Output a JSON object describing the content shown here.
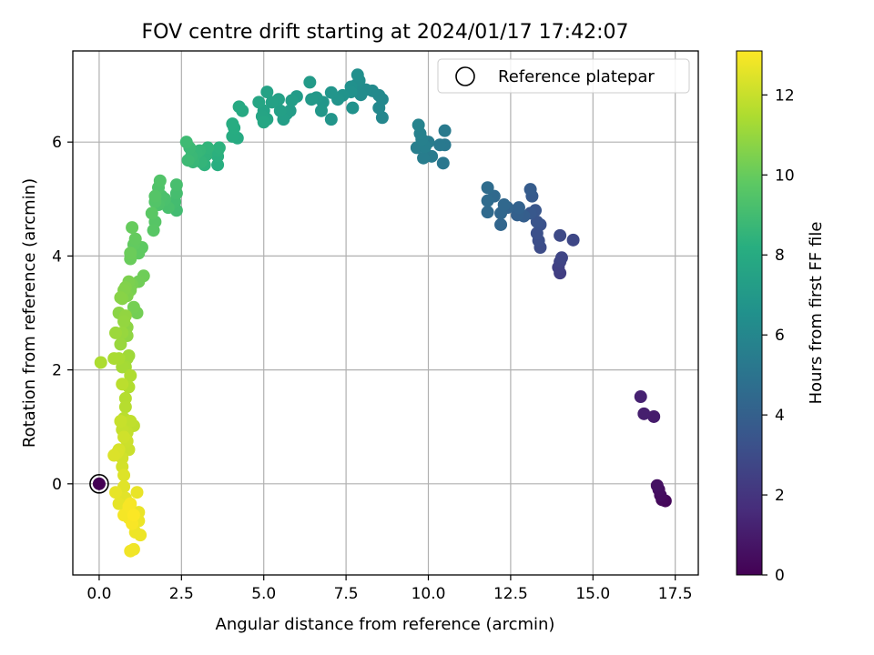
{
  "chart_data": {
    "type": "scatter",
    "title": "FOV centre drift starting at 2024/01/17 17:42:07",
    "xlabel": "Angular distance from reference (arcmin)",
    "ylabel": "Rotation from reference (arcmin)",
    "xlim": [
      -0.8,
      18.2
    ],
    "ylim": [
      -1.6,
      7.6
    ],
    "xticks": [
      0.0,
      2.5,
      5.0,
      7.5,
      10.0,
      12.5,
      15.0,
      17.5
    ],
    "xtick_labels": [
      "0.0",
      "2.5",
      "5.0",
      "7.5",
      "10.0",
      "12.5",
      "15.0",
      "17.5"
    ],
    "yticks": [
      0,
      2,
      4,
      6
    ],
    "ytick_labels": [
      "0",
      "2",
      "4",
      "6"
    ],
    "grid": true,
    "legend": {
      "position": "top-right",
      "entries": [
        "Reference platepar"
      ]
    },
    "colorbar": {
      "label": "Hours from first FF file",
      "colormap": "viridis",
      "range": [
        0,
        13.1
      ],
      "ticks": [
        0,
        2,
        4,
        6,
        8,
        10,
        12
      ],
      "tick_labels": [
        "0",
        "2",
        "4",
        "6",
        "8",
        "10",
        "12"
      ]
    },
    "reference_point": {
      "x": 0.0,
      "y": 0.0,
      "color_value": 0.0
    },
    "series": [
      {
        "points": [
          [
            17.2,
            -0.3,
            0.2
          ],
          [
            17.1,
            -0.28,
            0.3
          ],
          [
            17.05,
            -0.2,
            0.4
          ],
          [
            17.0,
            -0.1,
            0.5
          ],
          [
            16.95,
            -0.03,
            0.6
          ],
          [
            16.85,
            1.18,
            1.0
          ],
          [
            16.55,
            1.23,
            1.1
          ],
          [
            16.45,
            1.53,
            1.2
          ],
          [
            14.0,
            3.7,
            2.4
          ],
          [
            13.95,
            3.8,
            2.5
          ],
          [
            14.0,
            3.9,
            2.6
          ],
          [
            14.05,
            3.97,
            2.7
          ],
          [
            14.4,
            4.28,
            2.8
          ],
          [
            14.0,
            4.36,
            2.9
          ],
          [
            13.4,
            4.15,
            3.0
          ],
          [
            13.35,
            4.27,
            3.1
          ],
          [
            13.3,
            4.4,
            3.2
          ],
          [
            13.4,
            4.55,
            3.3
          ],
          [
            13.3,
            4.6,
            3.4
          ],
          [
            13.25,
            4.8,
            3.5
          ],
          [
            13.1,
            4.75,
            3.6
          ],
          [
            13.15,
            5.05,
            3.7
          ],
          [
            13.1,
            5.17,
            3.8
          ],
          [
            12.9,
            4.7,
            3.9
          ],
          [
            12.7,
            4.72,
            4.0
          ],
          [
            12.75,
            4.85,
            4.1
          ],
          [
            12.4,
            4.85,
            4.2
          ],
          [
            12.2,
            4.55,
            4.3
          ],
          [
            12.2,
            4.75,
            4.35
          ],
          [
            12.3,
            4.9,
            4.4
          ],
          [
            12.0,
            5.05,
            4.45
          ],
          [
            11.8,
            4.77,
            4.5
          ],
          [
            11.8,
            4.97,
            4.55
          ],
          [
            11.8,
            5.2,
            4.6
          ],
          [
            10.45,
            5.63,
            5.2
          ],
          [
            10.5,
            5.95,
            5.25
          ],
          [
            10.35,
            5.95,
            5.3
          ],
          [
            10.5,
            6.2,
            5.35
          ],
          [
            10.1,
            5.75,
            5.4
          ],
          [
            10.0,
            6.0,
            5.45
          ],
          [
            9.85,
            5.72,
            5.5
          ],
          [
            9.65,
            5.9,
            5.55
          ],
          [
            9.9,
            5.92,
            5.6
          ],
          [
            9.8,
            6.05,
            5.65
          ],
          [
            9.75,
            6.15,
            5.7
          ],
          [
            9.7,
            6.3,
            5.8
          ],
          [
            8.6,
            6.43,
            6.0
          ],
          [
            8.5,
            6.6,
            6.05
          ],
          [
            8.6,
            6.75,
            6.1
          ],
          [
            8.5,
            6.82,
            6.15
          ],
          [
            8.3,
            6.9,
            6.2
          ],
          [
            8.1,
            6.92,
            6.25
          ],
          [
            7.95,
            6.83,
            6.3
          ],
          [
            7.8,
            7.0,
            6.35
          ],
          [
            7.9,
            7.08,
            6.4
          ],
          [
            7.85,
            7.18,
            6.45
          ],
          [
            7.65,
            6.97,
            6.5
          ],
          [
            7.65,
            6.88,
            6.55
          ],
          [
            7.7,
            6.6,
            6.6
          ],
          [
            7.4,
            6.82,
            6.65
          ],
          [
            7.25,
            6.75,
            6.7
          ],
          [
            7.05,
            6.87,
            6.75
          ],
          [
            7.05,
            6.4,
            6.8
          ],
          [
            6.8,
            6.7,
            6.85
          ],
          [
            6.75,
            6.55,
            6.9
          ],
          [
            6.6,
            6.78,
            6.95
          ],
          [
            6.45,
            6.75,
            7.0
          ],
          [
            6.4,
            7.05,
            7.05
          ],
          [
            6.0,
            6.8,
            7.1
          ],
          [
            5.8,
            6.55,
            7.15
          ],
          [
            5.85,
            6.73,
            7.2
          ],
          [
            5.7,
            6.5,
            7.25
          ],
          [
            5.6,
            6.4,
            7.3
          ],
          [
            5.5,
            6.55,
            7.35
          ],
          [
            5.45,
            6.75,
            7.4
          ],
          [
            5.25,
            6.7,
            7.45
          ],
          [
            5.1,
            6.88,
            7.5
          ],
          [
            5.0,
            6.55,
            7.55
          ],
          [
            5.1,
            6.4,
            7.6
          ],
          [
            4.95,
            6.45,
            7.65
          ],
          [
            4.85,
            6.7,
            7.7
          ],
          [
            5.0,
            6.35,
            7.75
          ],
          [
            4.35,
            6.55,
            7.85
          ],
          [
            4.25,
            6.62,
            7.9
          ],
          [
            4.2,
            6.07,
            7.95
          ],
          [
            4.05,
            6.1,
            8.0
          ],
          [
            4.1,
            6.25,
            8.05
          ],
          [
            4.05,
            6.32,
            8.1
          ],
          [
            3.6,
            5.6,
            8.2
          ],
          [
            3.6,
            5.75,
            8.25
          ],
          [
            3.6,
            5.85,
            8.3
          ],
          [
            3.65,
            5.9,
            8.35
          ],
          [
            3.2,
            5.6,
            8.4
          ],
          [
            3.25,
            5.77,
            8.45
          ],
          [
            3.3,
            5.9,
            8.5
          ],
          [
            3.1,
            5.65,
            8.55
          ],
          [
            3.05,
            5.85,
            8.6
          ],
          [
            2.95,
            5.8,
            8.65
          ],
          [
            2.85,
            5.65,
            8.7
          ],
          [
            2.8,
            5.75,
            8.75
          ],
          [
            2.75,
            5.9,
            8.8
          ],
          [
            2.7,
            5.68,
            8.85
          ],
          [
            2.65,
            6.0,
            8.9
          ],
          [
            2.35,
            4.8,
            9.0
          ],
          [
            2.3,
            4.95,
            9.05
          ],
          [
            2.35,
            5.1,
            9.1
          ],
          [
            2.35,
            5.25,
            9.15
          ],
          [
            2.1,
            4.85,
            9.2
          ],
          [
            2.0,
            5.0,
            9.25
          ],
          [
            1.9,
            5.05,
            9.3
          ],
          [
            1.8,
            4.9,
            9.35
          ],
          [
            1.8,
            5.2,
            9.4
          ],
          [
            1.85,
            5.32,
            9.45
          ],
          [
            1.7,
            4.95,
            9.5
          ],
          [
            1.7,
            5.05,
            9.55
          ],
          [
            1.7,
            4.6,
            9.6
          ],
          [
            1.65,
            4.45,
            9.65
          ],
          [
            1.6,
            4.75,
            9.7
          ],
          [
            1.3,
            4.15,
            9.8
          ],
          [
            1.2,
            4.05,
            9.85
          ],
          [
            1.05,
            4.2,
            9.9
          ],
          [
            1.1,
            4.3,
            9.95
          ],
          [
            1.0,
            4.5,
            10.0
          ],
          [
            0.95,
            3.95,
            10.05
          ],
          [
            0.95,
            4.05,
            10.1
          ],
          [
            1.35,
            3.65,
            10.15
          ],
          [
            1.2,
            3.55,
            10.2
          ],
          [
            1.15,
            3.0,
            10.25
          ],
          [
            1.05,
            3.1,
            10.3
          ],
          [
            1.0,
            3.5,
            10.35
          ],
          [
            0.95,
            3.4,
            10.4
          ],
          [
            0.9,
            3.55,
            10.45
          ],
          [
            0.85,
            3.3,
            10.5
          ],
          [
            0.8,
            3.45,
            10.55
          ],
          [
            0.75,
            3.4,
            10.6
          ],
          [
            0.7,
            3.25,
            10.65
          ],
          [
            0.65,
            3.27,
            10.7
          ],
          [
            0.6,
            3.0,
            10.75
          ],
          [
            0.85,
            2.75,
            10.8
          ],
          [
            0.85,
            2.6,
            10.85
          ],
          [
            0.8,
            2.95,
            10.9
          ],
          [
            0.75,
            2.85,
            10.95
          ],
          [
            0.7,
            2.65,
            11.0
          ],
          [
            0.65,
            2.45,
            11.05
          ],
          [
            0.5,
            2.65,
            11.1
          ],
          [
            0.9,
            2.25,
            11.15
          ],
          [
            0.85,
            2.2,
            11.2
          ],
          [
            0.8,
            2.05,
            11.25
          ],
          [
            0.7,
            2.05,
            11.3
          ],
          [
            0.6,
            2.2,
            11.35
          ],
          [
            0.45,
            2.2,
            11.4
          ],
          [
            0.05,
            2.13,
            11.45
          ],
          [
            0.95,
            1.9,
            11.5
          ],
          [
            0.9,
            1.7,
            11.55
          ],
          [
            0.8,
            1.5,
            11.6
          ],
          [
            0.8,
            1.35,
            11.65
          ],
          [
            0.75,
            1.15,
            11.7
          ],
          [
            0.7,
            1.75,
            11.75
          ],
          [
            1.05,
            1.02,
            11.8
          ],
          [
            0.95,
            1.1,
            11.85
          ],
          [
            0.85,
            0.9,
            11.9
          ],
          [
            0.7,
            0.95,
            11.95
          ],
          [
            0.65,
            1.1,
            12.0
          ],
          [
            0.9,
            0.6,
            12.05
          ],
          [
            0.85,
            0.75,
            12.1
          ],
          [
            0.75,
            0.82,
            12.15
          ],
          [
            0.7,
            0.45,
            12.2
          ],
          [
            0.7,
            0.3,
            12.25
          ],
          [
            0.6,
            0.6,
            12.3
          ],
          [
            0.55,
            0.55,
            12.35
          ],
          [
            0.45,
            0.5,
            12.4
          ],
          [
            0.75,
            0.15,
            12.45
          ],
          [
            0.75,
            -0.05,
            12.5
          ],
          [
            0.8,
            -0.25,
            12.55
          ],
          [
            0.6,
            -0.35,
            12.6
          ],
          [
            0.5,
            -0.15,
            12.65
          ],
          [
            1.15,
            -0.15,
            12.7
          ],
          [
            1.2,
            -0.5,
            12.72
          ],
          [
            1.2,
            -0.65,
            12.75
          ],
          [
            1.25,
            -0.9,
            12.78
          ],
          [
            1.1,
            -0.85,
            12.8
          ],
          [
            1.05,
            -1.15,
            12.82
          ],
          [
            0.95,
            -1.18,
            12.85
          ],
          [
            0.95,
            -0.5,
            12.88
          ],
          [
            0.9,
            -0.6,
            12.9
          ],
          [
            0.75,
            -0.55,
            12.93
          ],
          [
            0.95,
            -0.35,
            12.95
          ],
          [
            0.9,
            -0.4,
            12.98
          ],
          [
            1.0,
            -0.7,
            13.0
          ],
          [
            1.05,
            -0.55,
            13.05
          ]
        ]
      }
    ]
  }
}
